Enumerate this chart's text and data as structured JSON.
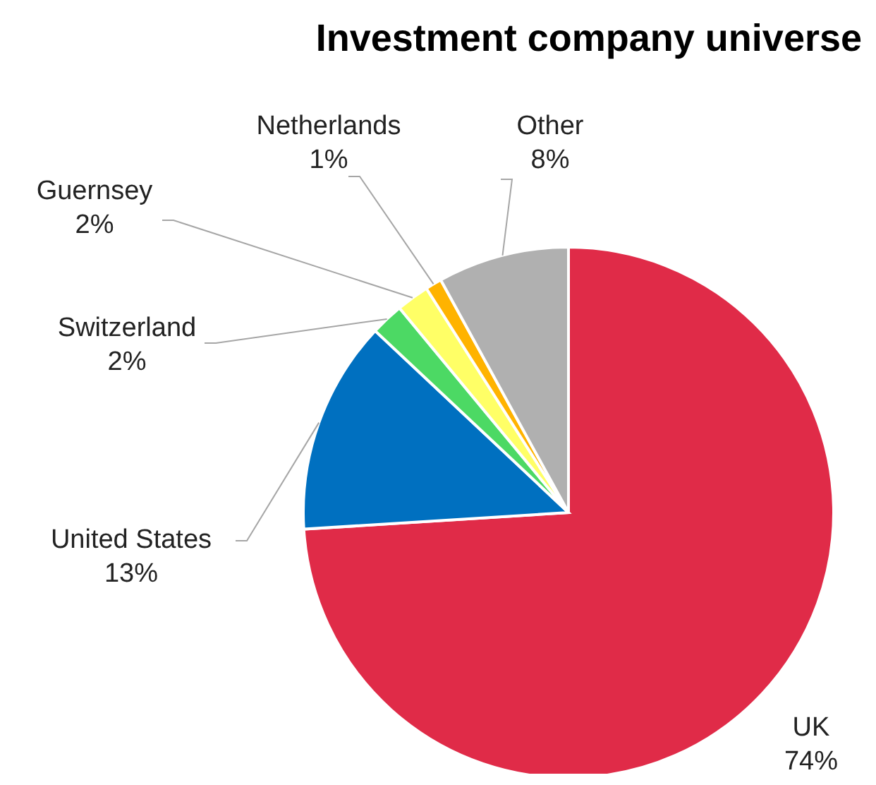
{
  "chart_data": {
    "type": "pie",
    "title": "Investment company universe",
    "categories": [
      "UK",
      "United States",
      "Switzerland",
      "Guernsey",
      "Netherlands",
      "Other"
    ],
    "values": [
      74,
      13,
      2,
      2,
      1,
      8
    ],
    "value_labels": [
      "74%",
      "13%",
      "2%",
      "2%",
      "1%",
      "8%"
    ],
    "colors": [
      "#e02b48",
      "#0070c0",
      "#4cd964",
      "#ffff66",
      "#ffb300",
      "#b0b0b0"
    ]
  }
}
